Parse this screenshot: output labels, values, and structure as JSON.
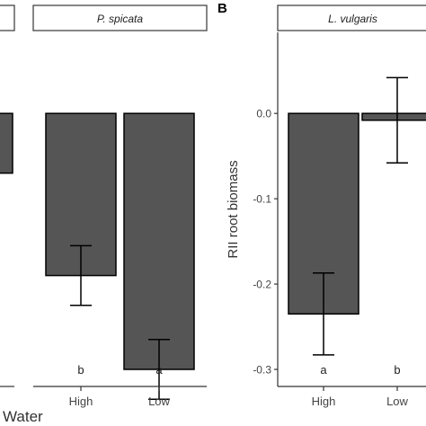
{
  "chart_data": [
    {
      "type": "bar",
      "panel_tag": "",
      "strip_label": "",
      "categories": [
        ""
      ],
      "values": [
        -0.07
      ],
      "errors": [
        null
      ],
      "letters": [
        ""
      ],
      "ylim": [
        -0.32,
        0.095
      ],
      "partially_visible": true
    },
    {
      "type": "bar",
      "panel_tag": "",
      "strip_label": "P. spicata",
      "categories": [
        "High",
        "Low"
      ],
      "values": [
        -0.19,
        -0.3
      ],
      "errors": [
        0.035,
        0.035
      ],
      "letters": [
        "b",
        "a"
      ],
      "ylim": [
        -0.32,
        0.095
      ]
    },
    {
      "type": "bar",
      "panel_tag": "B",
      "strip_label": "L. vulgaris",
      "ylabel": "RII root biomass",
      "xlabel": "",
      "categories": [
        "High",
        "Low"
      ],
      "values": [
        -0.235,
        -0.008
      ],
      "errors": [
        0.048,
        0.05
      ],
      "letters": [
        "a",
        "b"
      ],
      "yticks": [
        0.0,
        -0.1,
        -0.2,
        -0.3
      ],
      "ylim": [
        -0.32,
        0.095
      ]
    }
  ],
  "shared_xlabel": "Water",
  "colors": {
    "bar_fill": "#555555",
    "strip_fill": "#ffffff",
    "ink": "#000000"
  }
}
